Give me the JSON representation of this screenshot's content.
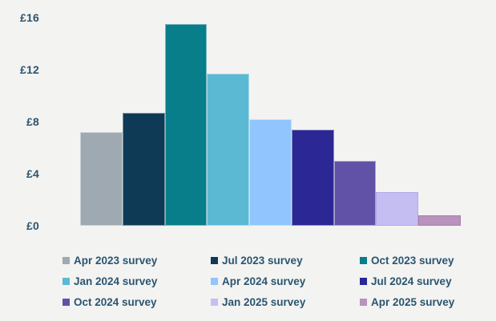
{
  "colors": {
    "background": "#f3f3f2",
    "text": "#2a556f"
  },
  "chart_data": {
    "type": "bar",
    "title": "",
    "xlabel": "",
    "ylabel": "",
    "currency_unit": "£",
    "ylim": [
      0,
      16
    ],
    "grid": false,
    "legend_position": "bottom",
    "yticks": [
      {
        "label": "£16",
        "value": 16
      },
      {
        "label": "£12",
        "value": 12
      },
      {
        "label": "£8",
        "value": 8
      },
      {
        "label": "£4",
        "value": 4
      },
      {
        "label": "£0",
        "value": 0
      }
    ],
    "categories": [
      "Apr 2023 survey",
      "Jul 2023 survey",
      "Oct 2023 survey",
      "Jan 2024 survey",
      "Apr 2024 survey",
      "Jul 2024 survey",
      "Oct 2024 survey",
      "Jan 2025 survey",
      "Apr 2025 survey"
    ],
    "values": [
      7.2,
      8.7,
      15.5,
      11.7,
      8.2,
      7.4,
      5.0,
      2.6,
      0.8
    ],
    "bar_colors": [
      "#9ea9b2",
      "#0e3a55",
      "#087e8b",
      "#5cb9d4",
      "#90c5fd",
      "#2b2795",
      "#6152a8",
      "#c5bef3",
      "#b992bd"
    ],
    "bar_borders": [
      "rgba(255,255,255,0.45)",
      "rgba(255,255,255,0.45)",
      "rgba(255,255,255,0.45)",
      "rgba(255,255,255,0.45)",
      "rgba(255,255,255,0.45)",
      "rgba(255,255,255,0.45)",
      "rgba(255,255,255,0.45)",
      "#b2a7ea",
      "#aa7fab"
    ]
  }
}
